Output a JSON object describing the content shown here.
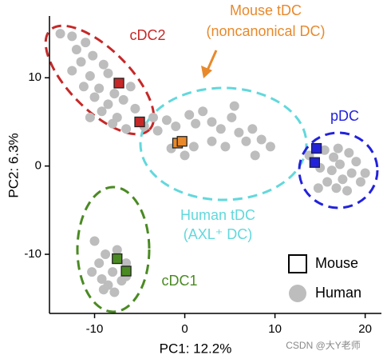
{
  "chart_data": {
    "type": "scatter",
    "x_label": "PC1: 12.2%",
    "y_label": "PC2: 6.3%",
    "xlim": [
      -15,
      21.8
    ],
    "ylim": [
      -16.7,
      17
    ],
    "xticks": [
      -10,
      0,
      10,
      20
    ],
    "yticks": [
      -10,
      0,
      10
    ],
    "series": [
      {
        "name": "Human",
        "color": "#bdbdbd",
        "marker": "circle",
        "x": [
          -13.8,
          -12.5,
          -11,
          -12,
          -10.2,
          -11.5,
          -9,
          -12.5,
          -10.5,
          -8.5,
          -11.2,
          -9.5,
          -7.8,
          -10,
          -8.5,
          -6.8,
          -9.2,
          -7.5,
          -5.5,
          -8,
          -6.5,
          -4.5,
          -10.5,
          -6,
          -3.5,
          -2,
          -3,
          -1,
          0.5,
          1.2,
          2,
          3,
          4,
          5.2,
          6,
          6.8,
          7.5,
          8.5,
          4.5,
          3,
          1,
          -1.5,
          0,
          5.5,
          9.5,
          7.8,
          13.8,
          15.5,
          16.5,
          17.2,
          18.2,
          19,
          20,
          18.5,
          17.5,
          16.3,
          15.8,
          16.8,
          18,
          15,
          19.5,
          17,
          14.8,
          -10,
          -9.5,
          -8.8,
          -8,
          -9.2,
          -7,
          -8.5,
          -6.5,
          -7.5,
          -6.5,
          -10.3,
          -7.8,
          -9
        ],
        "y": [
          15,
          14.7,
          14,
          13.2,
          12.5,
          11.8,
          11.5,
          10.8,
          10.2,
          10.5,
          9,
          8.8,
          8.2,
          7.8,
          7,
          7.5,
          6.2,
          5.5,
          6.5,
          4.8,
          4.2,
          4.5,
          5.5,
          9,
          5.5,
          5.2,
          4,
          4.5,
          5.8,
          4.8,
          6.2,
          5,
          4.2,
          5.5,
          3.8,
          2.8,
          4.2,
          3,
          2.2,
          2.8,
          2.2,
          2,
          1.2,
          6.8,
          2.2,
          1.2,
          1.2,
          1.8,
          1,
          0.2,
          1.5,
          0.5,
          -0.8,
          -0.8,
          -1.5,
          -0.5,
          -1.8,
          -2.5,
          -2.8,
          -0.2,
          -1.8,
          2,
          -2.5,
          -8.5,
          -11,
          -10,
          -12,
          -12.8,
          -13,
          -13.5,
          -12.5,
          -9.5,
          -11,
          -12,
          -14.3,
          -14
        ]
      },
      {
        "name": "Mouse",
        "marker": "square",
        "colors": [
          "#c62828",
          "#c62828",
          "#e8892b",
          "#e8892b",
          "#2222dd",
          "#2222dd",
          "#4a8a22",
          "#4a8a22"
        ],
        "x": [
          -7.3,
          -5.0,
          -0.8,
          -0.3,
          14.6,
          14.4,
          -7.5,
          -6.5
        ],
        "y": [
          9.4,
          5.0,
          2.6,
          2.8,
          2.0,
          0.4,
          -10.5,
          -11.9
        ]
      }
    ],
    "annotations": [
      {
        "text": "cDC2",
        "color": "#c62828"
      },
      {
        "text": "Mouse tDC",
        "color": "#e8892b"
      },
      {
        "text": "(noncanonical DC)",
        "color": "#e8892b"
      },
      {
        "text": "pDC",
        "color": "#2222dd"
      },
      {
        "text": "Human tDC",
        "color": "#62d8dc"
      },
      {
        "text": "(AXL⁺ DC)",
        "color": "#62d8dc"
      },
      {
        "text": "cDC1",
        "color": "#4a8a22"
      }
    ],
    "watermark": "CSDN @大Y老师"
  }
}
